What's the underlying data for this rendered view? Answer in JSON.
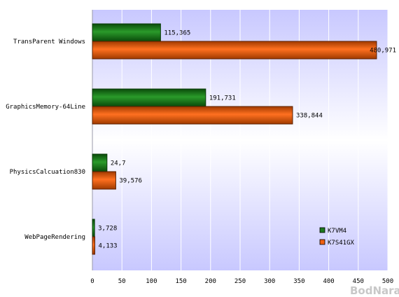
{
  "chart_data": {
    "type": "bar",
    "orientation": "horizontal",
    "title": "",
    "xlabel": "",
    "ylabel": "",
    "categories": [
      "TransParent Windows",
      "GraphicsMemory-64Line",
      "PhysicsCalcuation830",
      "WebPageRendering"
    ],
    "series": [
      {
        "name": "K7VM4",
        "color": "#1e7a1e",
        "values": [
          115.365,
          191.731,
          24.7,
          3.728
        ],
        "labels": [
          "115,365",
          "191,731",
          "24,7",
          "3,728"
        ]
      },
      {
        "name": "K7S41GX",
        "color": "#f06010",
        "values": [
          480.971,
          338.844,
          39.576,
          4.133
        ],
        "labels": [
          "480,971",
          "338,844",
          "39,576",
          "4,133"
        ]
      }
    ],
    "xlim": [
      0,
      500
    ],
    "xticks": [
      0,
      50,
      100,
      150,
      200,
      250,
      300,
      350,
      400,
      450,
      500
    ],
    "grid": true,
    "legend_position": "bottom-right"
  },
  "watermark": "BodNara"
}
